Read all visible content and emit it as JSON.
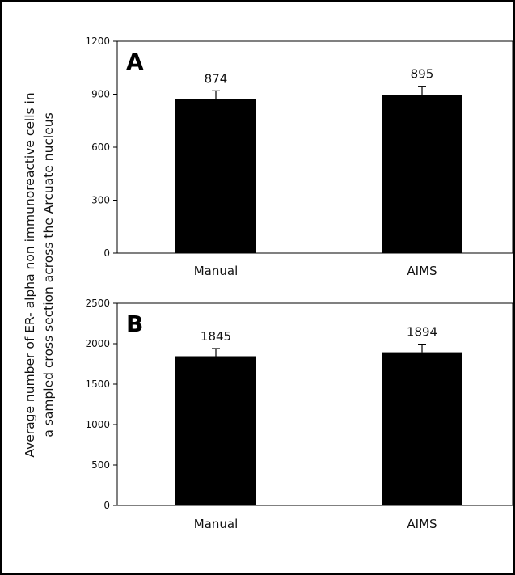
{
  "figure": {
    "ylabel_lines": [
      "Average number of ER- alpha non immunoreactive cells in",
      "a sampled cross section across the Arcuate nucleus"
    ]
  },
  "chart_data": [
    {
      "type": "bar",
      "panel_label": "A",
      "categories": [
        "Manual",
        "AIMS"
      ],
      "values": [
        874,
        895
      ],
      "value_labels": [
        "874",
        "895"
      ],
      "error": [
        45,
        50
      ],
      "ylim": [
        0,
        1200
      ],
      "yticks": [
        "0",
        "300",
        "600",
        "900",
        "1200"
      ],
      "bar_color": "#000000"
    },
    {
      "type": "bar",
      "panel_label": "B",
      "categories": [
        "Manual",
        "AIMS"
      ],
      "values": [
        1845,
        1894
      ],
      "value_labels": [
        "1845",
        "1894"
      ],
      "error": [
        95,
        100
      ],
      "ylim": [
        0,
        2500
      ],
      "yticks": [
        "0",
        "500",
        "1000",
        "1500",
        "2000",
        "2500"
      ],
      "bar_color": "#000000"
    }
  ]
}
